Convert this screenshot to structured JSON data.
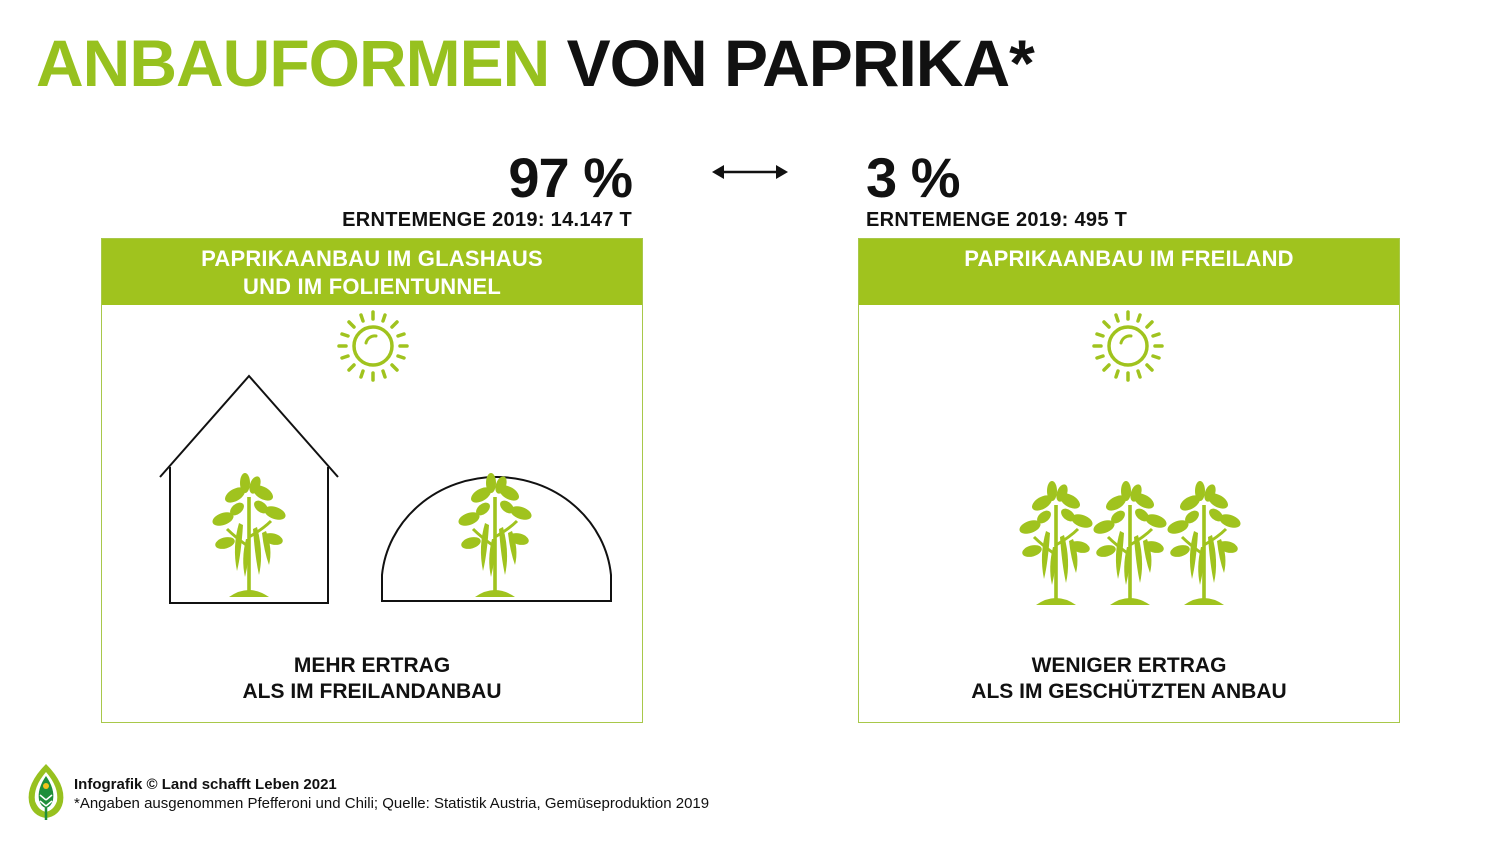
{
  "title": {
    "part1": "ANBAUFORMEN",
    "part2": "VON PAPRIKA*"
  },
  "colors": {
    "accent": "#97c11f",
    "header_bg": "#a0c31e",
    "text": "#111111"
  },
  "left": {
    "percent": "97 %",
    "harvest": "ERNTEMENGE 2019: 14.147 T",
    "header_line1": "PAPRIKAANBAU IM GLASHAUS",
    "header_line2": "UND IM FOLIENTUNNEL",
    "footer_line1": "MEHR ERTRAG",
    "footer_line2": "ALS IM FREILANDANBAU",
    "icons": [
      "sun-icon",
      "greenhouse-icon",
      "foil-tunnel-icon",
      "pepper-plant-icon"
    ]
  },
  "right": {
    "percent": "3 %",
    "harvest": "ERNTEMENGE 2019: 495 T",
    "header_line1": "PAPRIKAANBAU IM FREILAND",
    "footer_line1": "WENIGER ERTRAG",
    "footer_line2": "ALS IM GESCHÜTZTEN ANBAU",
    "icons": [
      "sun-icon",
      "pepper-plant-icon"
    ]
  },
  "compare_icon": "double-arrow-icon",
  "footer": {
    "credit": "Infografik © Land schafft Leben 2021",
    "note": "*Angaben ausgenommen Pfefferoni und Chili; Quelle: Statistik Austria, Gemüseproduktion 2019",
    "logo_icon": "leaf-logo-icon"
  }
}
